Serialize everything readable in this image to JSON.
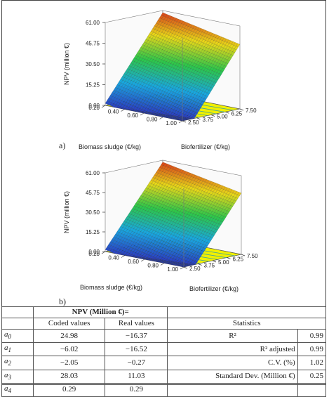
{
  "chart_data": [
    {
      "type": "surface",
      "panel_label": "a)",
      "zlabel": "NPV (million €)",
      "xlabel": "Biomass sludge (€/kg)",
      "ylabel": "Biofertilizer (€/kg)",
      "zticks": [
        "0.00",
        "15.25",
        "30.50",
        "45.75",
        "61.00"
      ],
      "xticks": [
        "0.20",
        "0.40",
        "0.60",
        "0.80",
        "1.00"
      ],
      "yticks": [
        "2.50",
        "3.75",
        "5.00",
        "6.25",
        "7.50"
      ],
      "xlim": [
        0.2,
        1.0
      ],
      "ylim": [
        2.5,
        7.5
      ],
      "zlim": [
        0,
        61
      ],
      "colormap": [
        "#2a3fc4",
        "#18a8e0",
        "#2cc84a",
        "#e8d818",
        "#d83018"
      ],
      "contour_floor_color": "#f0f000"
    },
    {
      "type": "surface",
      "panel_label": "b)",
      "zlabel": "NPV (million €)",
      "xlabel": "Biomass sludge (€/kg)",
      "ylabel": "Biofertilizer (€/kg)",
      "zticks": [
        "0.00",
        "15.25",
        "30.50",
        "45.75",
        "61.00"
      ],
      "xticks": [
        "0.20",
        "0.40",
        "0.60",
        "0.80",
        "1.00"
      ],
      "yticks": [
        "2.50",
        "3.75",
        "5.00",
        "6.25",
        "7.50"
      ],
      "xlim": [
        0.2,
        1.0
      ],
      "ylim": [
        2.5,
        7.5
      ],
      "zlim": [
        0,
        61
      ],
      "colormap": [
        "#2a3fc4",
        "#18a8e0",
        "#2cc84a",
        "#e8d818",
        "#d83018"
      ],
      "contour_floor_color": "#f0f000"
    }
  ],
  "table": {
    "npv_header": "NPV (Million €)=",
    "coded_header": "Coded values",
    "real_header": "Real values",
    "stats_header": "Statistics",
    "rows": [
      {
        "coef": "a0",
        "coded": "24.98",
        "real": "−16.37",
        "stat": "R²",
        "stat_val": "0.99"
      },
      {
        "coef": "a1",
        "coded": "−6.02",
        "real": "−16.52",
        "stat": "R² adjusted",
        "stat_val": "0.99"
      },
      {
        "coef": "a2",
        "coded": "−2.05",
        "real": "−0.27",
        "stat": "C.V. (%)",
        "stat_val": "1.02"
      },
      {
        "coef": "a3",
        "coded": "28.03",
        "real": "11.03",
        "stat": "Standard Dev. (Million €)",
        "stat_val": "0.25"
      },
      {
        "coef": "a4",
        "coded": "0.29",
        "real": "0.29",
        "stat": "",
        "stat_val": ""
      }
    ]
  }
}
